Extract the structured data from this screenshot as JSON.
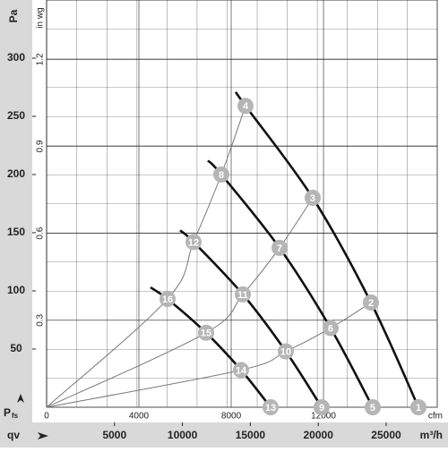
{
  "chart_data": {
    "type": "fan-curve",
    "y_label": "Pa",
    "y2_label": "in wg",
    "x_label": "m³/h",
    "x2_label": "cfm",
    "x_symbol": "qv",
    "pressure_symbol": "P",
    "pressure_subscript": "fs",
    "xlim": [
      0,
      28760
    ],
    "xticks": [
      5000,
      10000,
      15000,
      20000,
      25000
    ],
    "x2lim": [
      0,
      16930
    ],
    "x2ticks": [
      0,
      4000,
      8000,
      12000
    ],
    "ylim": [
      0,
      350
    ],
    "yticks": [
      50,
      100,
      150,
      200,
      250,
      300
    ],
    "y2lim": [
      0,
      1.405
    ],
    "y2ticks": [
      0.3,
      0.6,
      0.9,
      1.2
    ],
    "grid": true,
    "fan_curves": [
      {
        "x": [
          13918,
          14644,
          19591,
          23879,
          27375
        ],
        "y": [
          271,
          259,
          180,
          90,
          0
        ]
      },
      {
        "x": [
          11873,
          12863,
          17150,
          20910,
          24010
        ],
        "y": [
          212,
          200,
          137,
          68,
          0
        ]
      },
      {
        "x": [
          9828,
          10818,
          14446,
          17612,
          20251
        ],
        "y": [
          152,
          142,
          97,
          48,
          0
        ]
      },
      {
        "x": [
          7652,
          8905,
          11741,
          14314,
          16491
        ],
        "y": [
          103,
          93,
          64,
          32,
          0
        ]
      }
    ],
    "system_curves": [
      {
        "x": [
          0,
          8905,
          10818,
          12863,
          14644
        ],
        "y": [
          0,
          93,
          142,
          200,
          259
        ]
      },
      {
        "x": [
          0,
          11741,
          14446,
          17150,
          19591
        ],
        "y": [
          0,
          64,
          97,
          137,
          180
        ]
      },
      {
        "x": [
          0,
          14314,
          17612,
          20910,
          23879
        ],
        "y": [
          0,
          32,
          48,
          68,
          90
        ]
      }
    ],
    "points": [
      {
        "label": "1",
        "x": 27375,
        "y": 0
      },
      {
        "label": "2",
        "x": 23879,
        "y": 90
      },
      {
        "label": "3",
        "x": 19591,
        "y": 180
      },
      {
        "label": "4",
        "x": 14644,
        "y": 259
      },
      {
        "label": "5",
        "x": 24010,
        "y": 0
      },
      {
        "label": "6",
        "x": 20910,
        "y": 68
      },
      {
        "label": "7",
        "x": 17150,
        "y": 137
      },
      {
        "label": "8",
        "x": 12863,
        "y": 200
      },
      {
        "label": "9",
        "x": 20251,
        "y": 0
      },
      {
        "label": "10",
        "x": 17612,
        "y": 48
      },
      {
        "label": "11",
        "x": 14446,
        "y": 97
      },
      {
        "label": "12",
        "x": 10818,
        "y": 142
      },
      {
        "label": "13",
        "x": 16491,
        "y": 0
      },
      {
        "label": "14",
        "x": 14314,
        "y": 32
      },
      {
        "label": "15",
        "x": 11741,
        "y": 64
      },
      {
        "label": "16",
        "x": 8905,
        "y": 93
      }
    ]
  }
}
